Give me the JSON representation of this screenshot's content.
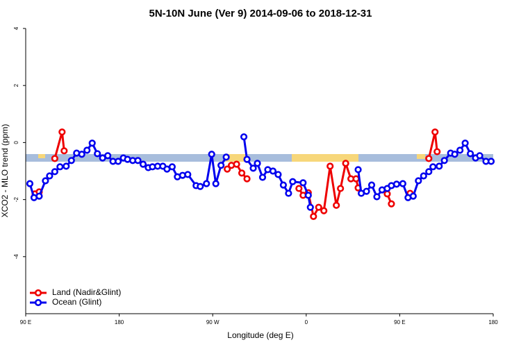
{
  "chart_data": {
    "type": "line",
    "title": "5N-10N June (Ver 9)   2014-09-06 to 2018-12-31",
    "x_label": "Longitude (deg E)",
    "y_label": "XCO2 - MLO trend (ppm)",
    "xlim": [
      90,
      540
    ],
    "xticks": [
      {
        "value": 90,
        "label": "90 E"
      },
      180,
      {
        "value": 270,
        "label": "90 W"
      },
      {
        "value": 360,
        "label": "0"
      },
      {
        "value": 450,
        "label": "90 E"
      },
      {
        "value": 540,
        "label": "180"
      }
    ],
    "ylim": [
      -6,
      4
    ],
    "yticks": [
      -4,
      -2,
      0,
      2,
      4
    ],
    "legend": "bottom-left",
    "series": [
      {
        "name": "Land (Nadir&Glint)",
        "color": "#ee0000",
        "x": [
          99,
          103,
          110,
          118,
          125,
          127,
          200,
          284,
          288,
          293,
          298,
          303,
          330,
          353,
          357,
          362,
          367,
          372,
          377,
          383,
          389,
          393,
          398,
          403,
          408,
          410,
          420,
          438,
          442,
          450,
          460,
          470,
          478,
          484,
          486
        ],
        "values": [
          -1.8,
          -1.73,
          null,
          -0.56,
          0.37,
          -0.29,
          null,
          -0.93,
          -0.8,
          -0.76,
          -1.07,
          -1.27,
          null,
          -1.61,
          -1.85,
          -1.76,
          -2.59,
          -2.27,
          -2.39,
          -0.83,
          -2.2,
          -1.61,
          -0.73,
          -1.27,
          -1.27,
          -1.59,
          null,
          -1.8,
          -2.15,
          null,
          -1.78,
          null,
          -0.56,
          0.37,
          -0.32
        ]
      },
      {
        "name": "Ocean (Glint)",
        "color": "#0000ee",
        "x": [
          94,
          98,
          103,
          109,
          113,
          118,
          123,
          129,
          134,
          139,
          144,
          149,
          154,
          159,
          164,
          169,
          174,
          179,
          184,
          188,
          193,
          198,
          203,
          208,
          212,
          217,
          222,
          226,
          231,
          236,
          241,
          246,
          254,
          258,
          264,
          269,
          273,
          278,
          283,
          290,
          300,
          303,
          309,
          313,
          318,
          323,
          328,
          333,
          338,
          343,
          347,
          357,
          362,
          364,
          390,
          410,
          413,
          418,
          423,
          428,
          433,
          438,
          442,
          447,
          453,
          458,
          463,
          468,
          473,
          478,
          482,
          488,
          493,
          499,
          503,
          508,
          513,
          518,
          523,
          527,
          533,
          538
        ],
        "values": [
          -1.44,
          -1.93,
          -1.88,
          -1.34,
          -1.17,
          -1.02,
          -0.85,
          -0.83,
          -0.63,
          -0.37,
          -0.41,
          -0.27,
          -0.02,
          -0.39,
          -0.54,
          -0.46,
          -0.66,
          -0.66,
          -0.54,
          -0.59,
          -0.63,
          -0.63,
          -0.76,
          -0.88,
          -0.85,
          -0.83,
          -0.83,
          -0.93,
          -0.85,
          -1.2,
          -1.15,
          -1.12,
          -1.51,
          -1.54,
          -1.44,
          -0.41,
          -1.44,
          -0.8,
          -0.51,
          null,
          0.2,
          -0.59,
          -0.9,
          -0.73,
          -1.22,
          -0.95,
          -1.0,
          -1.12,
          -1.49,
          -1.78,
          -1.37,
          -1.41,
          -1.85,
          -2.27,
          null,
          -0.95,
          -1.78,
          -1.71,
          -1.49,
          -1.9,
          -1.66,
          -1.61,
          -1.51,
          -1.46,
          -1.44,
          -1.93,
          -1.88,
          -1.34,
          -1.17,
          -1.02,
          -0.85,
          -0.83,
          -0.63,
          -0.37,
          -0.41,
          -0.27,
          -0.02,
          -0.39,
          -0.54,
          -0.46,
          -0.66,
          -0.66
        ]
      }
    ]
  }
}
